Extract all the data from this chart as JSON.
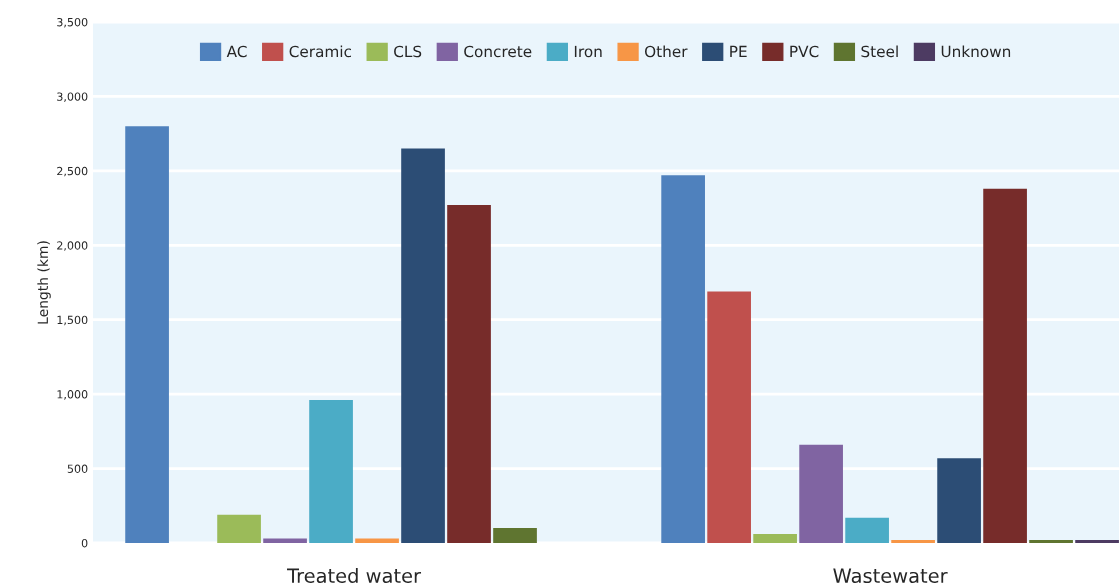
{
  "chart_data": {
    "type": "bar",
    "ylabel": "Length (km)",
    "categories": [
      "Treated water",
      "Wastewater"
    ],
    "series": [
      {
        "name": "AC",
        "color": "#4f81bd",
        "values": [
          2800,
          2470
        ]
      },
      {
        "name": "Ceramic",
        "color": "#c0504d",
        "values": [
          null,
          1690
        ]
      },
      {
        "name": "CLS",
        "color": "#9bbb59",
        "values": [
          190,
          60
        ]
      },
      {
        "name": "Concrete",
        "color": "#8064a2",
        "values": [
          30,
          660
        ]
      },
      {
        "name": "Iron",
        "color": "#4bacc6",
        "values": [
          960,
          170
        ]
      },
      {
        "name": "Other",
        "color": "#f79646",
        "values": [
          30,
          20
        ]
      },
      {
        "name": "PE",
        "color": "#2c4d75",
        "values": [
          2650,
          570
        ]
      },
      {
        "name": "PVC",
        "color": "#772c2a",
        "values": [
          2270,
          2380
        ]
      },
      {
        "name": "Steel",
        "color": "#5f7530",
        "values": [
          100,
          20
        ]
      },
      {
        "name": "Unknown",
        "color": "#4d3b62",
        "values": [
          null,
          20
        ]
      }
    ],
    "ylim": [
      0,
      3500
    ],
    "yticks": [
      0,
      500,
      {
        "value": 1000,
        "label": "1,000"
      },
      {
        "value": 1500,
        "label": "1,500"
      },
      {
        "value": 2000,
        "label": "2,000"
      },
      {
        "value": 2500,
        "label": "2,500"
      },
      {
        "value": 3000,
        "label": "3,000"
      },
      {
        "value": 3500,
        "label": "3,500"
      }
    ],
    "grid": "y",
    "legend": "top"
  }
}
